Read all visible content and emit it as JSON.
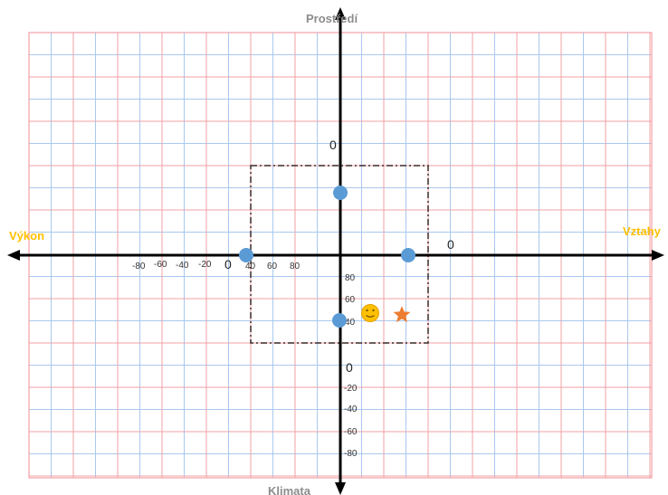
{
  "labels": {
    "top": "Prostředí",
    "bottom": "Klimata",
    "left": "Výkon",
    "right": "Vztahy"
  },
  "zero_marks": [
    "0",
    "0",
    "0",
    "0"
  ],
  "x_ticks": [
    "-80",
    "-60",
    "-40",
    "-20",
    "40",
    "60",
    "80"
  ],
  "y_ticks": [
    "80",
    "60",
    "40",
    "-20",
    "-40",
    "-60",
    "-80"
  ],
  "colors": {
    "fine_grid": "#a9c8ee",
    "major_grid": "#f2a1a6",
    "axis": "#000000",
    "point": "#5b9bd5",
    "star": "#ed7d31",
    "smiley": "#ffc000",
    "top_bottom_label": "#8c8c8c",
    "left_right_label": "#ffc000"
  },
  "icons": {
    "smiley": "smiley-icon",
    "star": "star-icon"
  }
}
